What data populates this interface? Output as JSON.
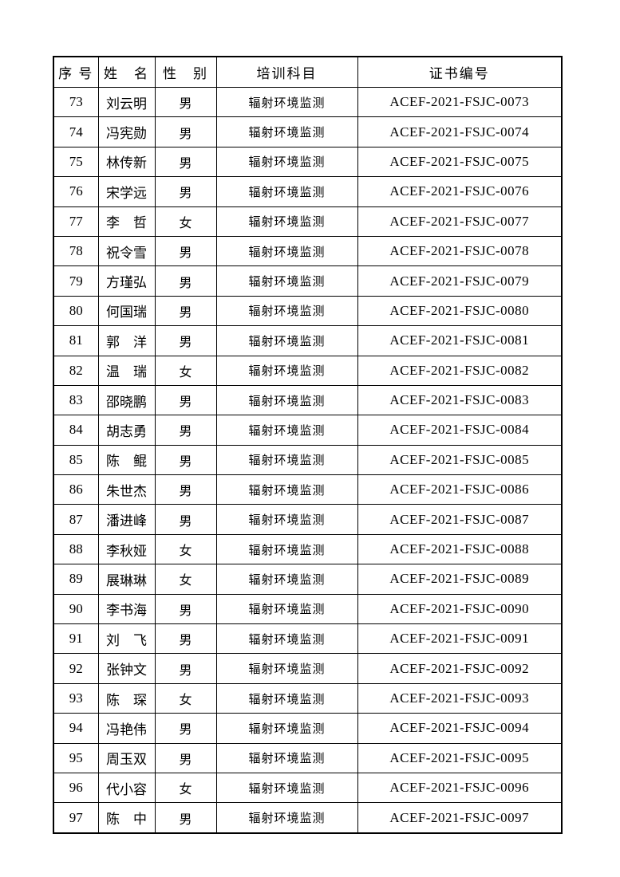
{
  "document": {
    "background_color": "#ffffff",
    "text_color": "#000000",
    "border_color": "#000000"
  },
  "table": {
    "columns": [
      {
        "key": "serial",
        "label": "序 号"
      },
      {
        "key": "name",
        "label": "姓　名"
      },
      {
        "key": "gender",
        "label": "性　别"
      },
      {
        "key": "subject",
        "label": "培训科目"
      },
      {
        "key": "cert",
        "label": "证书编号"
      }
    ],
    "rows": [
      {
        "serial": "73",
        "name": "刘云明",
        "gender": "男",
        "subject": "辐射环境监测",
        "cert": "ACEF-2021-FSJC-0073"
      },
      {
        "serial": "74",
        "name": "冯宪勋",
        "gender": "男",
        "subject": "辐射环境监测",
        "cert": "ACEF-2021-FSJC-0074"
      },
      {
        "serial": "75",
        "name": "林传新",
        "gender": "男",
        "subject": "辐射环境监测",
        "cert": "ACEF-2021-FSJC-0075"
      },
      {
        "serial": "76",
        "name": "宋学远",
        "gender": "男",
        "subject": "辐射环境监测",
        "cert": "ACEF-2021-FSJC-0076"
      },
      {
        "serial": "77",
        "name": "李　哲",
        "gender": "女",
        "subject": "辐射环境监测",
        "cert": "ACEF-2021-FSJC-0077"
      },
      {
        "serial": "78",
        "name": "祝令雪",
        "gender": "男",
        "subject": "辐射环境监测",
        "cert": "ACEF-2021-FSJC-0078"
      },
      {
        "serial": "79",
        "name": "方瑾弘",
        "gender": "男",
        "subject": "辐射环境监测",
        "cert": "ACEF-2021-FSJC-0079"
      },
      {
        "serial": "80",
        "name": "何国瑞",
        "gender": "男",
        "subject": "辐射环境监测",
        "cert": "ACEF-2021-FSJC-0080"
      },
      {
        "serial": "81",
        "name": "郭　洋",
        "gender": "男",
        "subject": "辐射环境监测",
        "cert": "ACEF-2021-FSJC-0081"
      },
      {
        "serial": "82",
        "name": "温　瑞",
        "gender": "女",
        "subject": "辐射环境监测",
        "cert": "ACEF-2021-FSJC-0082"
      },
      {
        "serial": "83",
        "name": "邵晓鹏",
        "gender": "男",
        "subject": "辐射环境监测",
        "cert": "ACEF-2021-FSJC-0083"
      },
      {
        "serial": "84",
        "name": "胡志勇",
        "gender": "男",
        "subject": "辐射环境监测",
        "cert": "ACEF-2021-FSJC-0084"
      },
      {
        "serial": "85",
        "name": "陈　鲲",
        "gender": "男",
        "subject": "辐射环境监测",
        "cert": "ACEF-2021-FSJC-0085"
      },
      {
        "serial": "86",
        "name": "朱世杰",
        "gender": "男",
        "subject": "辐射环境监测",
        "cert": "ACEF-2021-FSJC-0086"
      },
      {
        "serial": "87",
        "name": "潘进峰",
        "gender": "男",
        "subject": "辐射环境监测",
        "cert": "ACEF-2021-FSJC-0087"
      },
      {
        "serial": "88",
        "name": "李秋娅",
        "gender": "女",
        "subject": "辐射环境监测",
        "cert": "ACEF-2021-FSJC-0088"
      },
      {
        "serial": "89",
        "name": "展琳琳",
        "gender": "女",
        "subject": "辐射环境监测",
        "cert": "ACEF-2021-FSJC-0089"
      },
      {
        "serial": "90",
        "name": "李书海",
        "gender": "男",
        "subject": "辐射环境监测",
        "cert": "ACEF-2021-FSJC-0090"
      },
      {
        "serial": "91",
        "name": "刘　飞",
        "gender": "男",
        "subject": "辐射环境监测",
        "cert": "ACEF-2021-FSJC-0091"
      },
      {
        "serial": "92",
        "name": "张钟文",
        "gender": "男",
        "subject": "辐射环境监测",
        "cert": "ACEF-2021-FSJC-0092"
      },
      {
        "serial": "93",
        "name": "陈　琛",
        "gender": "女",
        "subject": "辐射环境监测",
        "cert": "ACEF-2021-FSJC-0093"
      },
      {
        "serial": "94",
        "name": "冯艳伟",
        "gender": "男",
        "subject": "辐射环境监测",
        "cert": "ACEF-2021-FSJC-0094"
      },
      {
        "serial": "95",
        "name": "周玉双",
        "gender": "男",
        "subject": "辐射环境监测",
        "cert": "ACEF-2021-FSJC-0095"
      },
      {
        "serial": "96",
        "name": "代小容",
        "gender": "女",
        "subject": "辐射环境监测",
        "cert": "ACEF-2021-FSJC-0096"
      },
      {
        "serial": "97",
        "name": "陈　中",
        "gender": "男",
        "subject": "辐射环境监测",
        "cert": "ACEF-2021-FSJC-0097"
      }
    ]
  }
}
